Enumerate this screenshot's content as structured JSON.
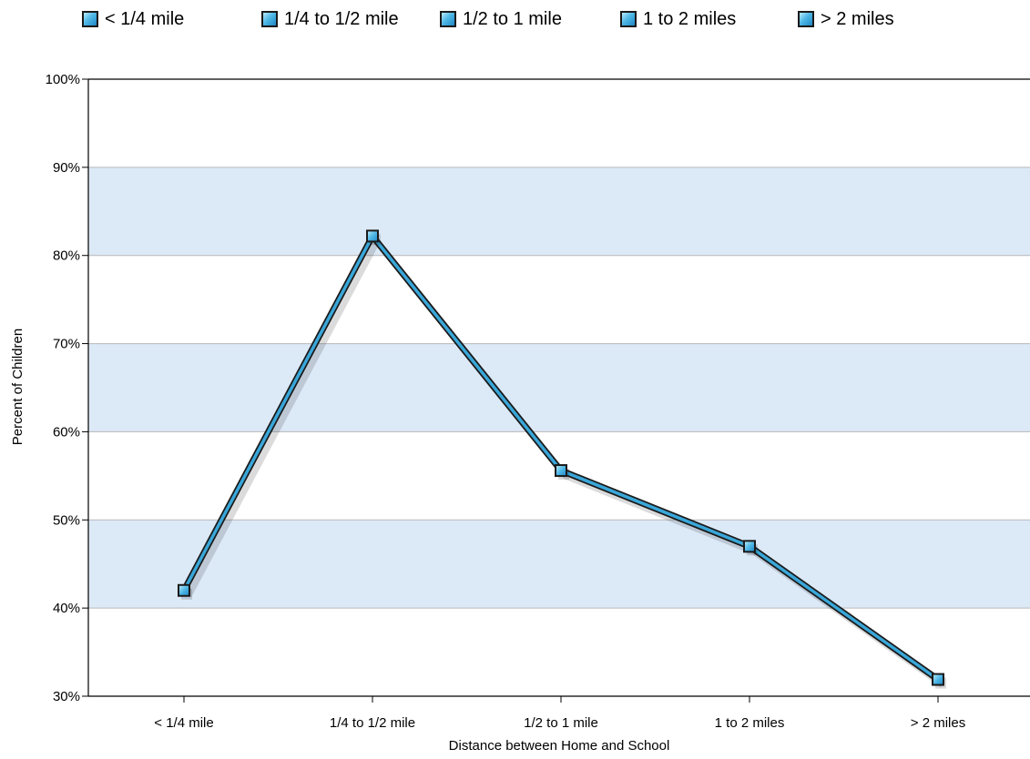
{
  "legend": [
    {
      "label": "< 1/4 mile"
    },
    {
      "label": "1/4 to 1/2 mile"
    },
    {
      "label": "1/2 to 1 mile"
    },
    {
      "label": "1 to 2 miles"
    },
    {
      "label": "> 2 miles"
    }
  ],
  "chart_data": {
    "type": "line",
    "categories": [
      "< 1/4 mile",
      "1/4 to 1/2 mile",
      "1/2 to 1 mile",
      "1 to 2 miles",
      "> 2 miles"
    ],
    "series": [
      {
        "values": [
          42,
          82.2,
          55.6,
          47,
          31.9
        ]
      }
    ],
    "xlabel": "Distance between Home and School",
    "ylabel": "Percent of Children",
    "ylim": [
      30,
      100
    ],
    "yticks": [
      "30%",
      "40%",
      "50%",
      "60%",
      "70%",
      "80%",
      "90%",
      "100%"
    ],
    "grid": true,
    "banded_background": true,
    "legend_position": "top",
    "colors": {
      "line": "#3aa6d8",
      "line_outline": "#1a1a1a",
      "band": "#dce9f7",
      "gridline": "#b8b8b8",
      "marker_fill": "#4fb8e6"
    }
  }
}
